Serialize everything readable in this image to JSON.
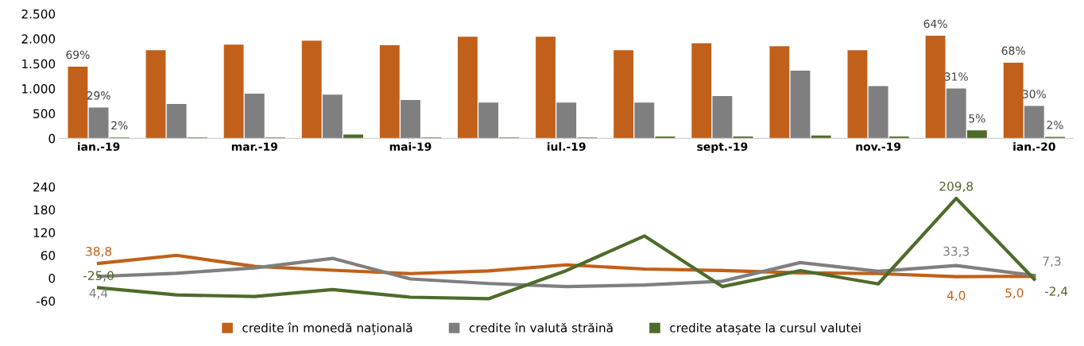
{
  "chart_data": [
    {
      "type": "bar",
      "categories": [
        "ian.-19",
        null,
        "mar.-19",
        null,
        "mai-19",
        null,
        "iul.-19",
        null,
        "sept.-19",
        null,
        "nov.-19",
        null,
        "ian.-20"
      ],
      "ylim": [
        0,
        2500
      ],
      "yticks": [
        {
          "value": 0,
          "label": "0"
        },
        {
          "value": 500,
          "label": "500"
        },
        {
          "value": 1000,
          "label": "1.000"
        },
        {
          "value": 1500,
          "label": "1.500"
        },
        {
          "value": 2000,
          "label": "2.000"
        },
        {
          "value": 2500,
          "label": "2.500"
        }
      ],
      "grid": false,
      "legend": "bottom",
      "series": [
        {
          "name": "credite în monedă națională",
          "color": "#c0601a",
          "values": [
            1440,
            1770,
            1880,
            1960,
            1870,
            2040,
            2040,
            1770,
            1910,
            1850,
            1770,
            2060,
            1520
          ]
        },
        {
          "name": "credite în valută străină",
          "color": "#7f7f7f",
          "values": [
            620,
            690,
            900,
            880,
            770,
            720,
            720,
            720,
            850,
            1360,
            1050,
            1000,
            650
          ]
        },
        {
          "name": "credite atașate la cursul valutei",
          "color": "#4e6b2a",
          "values": [
            20,
            20,
            20,
            80,
            20,
            20,
            20,
            40,
            40,
            60,
            40,
            160,
            30
          ]
        }
      ],
      "annotations": [
        "69%",
        "29%",
        "2%",
        "64%",
        "31%",
        "5%",
        "68%",
        "30%",
        "2%"
      ]
    },
    {
      "type": "line",
      "categories": [
        null,
        null,
        null,
        null,
        null,
        null,
        null,
        null,
        null,
        null,
        null,
        null,
        null
      ],
      "ylim": [
        -60,
        240
      ],
      "yticks": [
        -60,
        0,
        60,
        120,
        180,
        240
      ],
      "grid": false,
      "tick_labels": "y",
      "marker": "none",
      "line_style": "solid",
      "series": [
        {
          "color": "#c0601a",
          "values": [
            38.8,
            60,
            31,
            21,
            12,
            19,
            35,
            24,
            20,
            14,
            12,
            4.0,
            5.0
          ],
          "value_labels": [
            "38,8",
            null,
            null,
            null,
            null,
            null,
            null,
            null,
            null,
            null,
            null,
            "4,0",
            "5,0"
          ]
        },
        {
          "color": "#7f7f7f",
          "values": [
            4.4,
            13,
            27,
            52,
            -2,
            -14,
            -22,
            -18,
            -8,
            41,
            18,
            33.3,
            7.3
          ],
          "value_labels": [
            "4,4",
            null,
            null,
            null,
            null,
            null,
            null,
            null,
            null,
            null,
            null,
            "33,3",
            "7,3"
          ]
        },
        {
          "color": "#4e6b2a",
          "values": [
            -25.0,
            -44,
            -48,
            -30,
            -50,
            -54,
            20,
            111,
            -22,
            20,
            -15,
            209.8,
            -2.4
          ],
          "value_labels": [
            "-25,0",
            null,
            null,
            null,
            null,
            null,
            null,
            null,
            null,
            null,
            null,
            "209,8",
            "-2,4"
          ]
        }
      ]
    }
  ]
}
